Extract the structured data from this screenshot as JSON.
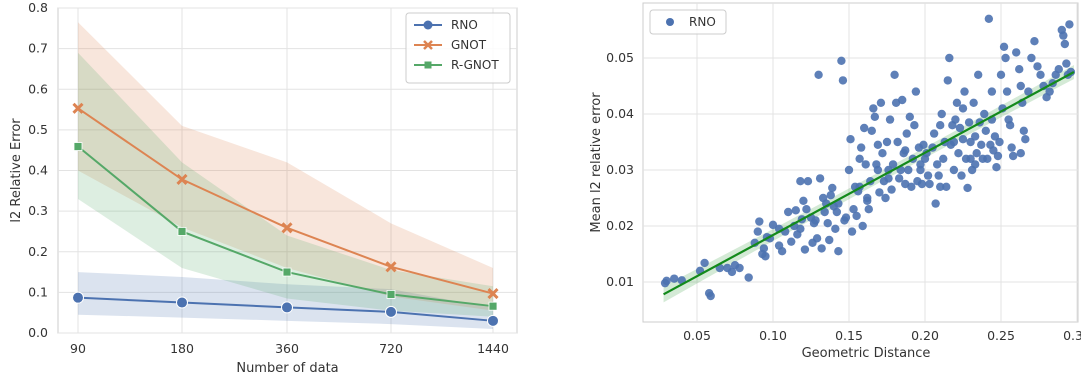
{
  "chart_data": [
    {
      "type": "line",
      "title": "",
      "xlabel": "Number of data",
      "ylabel": "l2 Relative Error",
      "categories": [
        "90",
        "180",
        "360",
        "720",
        "1440"
      ],
      "ylim": [
        0.0,
        0.8
      ],
      "yticks": [
        "0.0",
        "0.1",
        "0.2",
        "0.3",
        "0.4",
        "0.5",
        "0.6",
        "0.7",
        "0.8"
      ],
      "grid": true,
      "legend": "top-right",
      "series": [
        {
          "name": "RNO",
          "color": "#4c72b0",
          "marker": "circle",
          "values": [
            0.087,
            0.075,
            0.063,
            0.052,
            0.03
          ],
          "lower": [
            0.045,
            0.038,
            0.03,
            0.022,
            0.01
          ],
          "upper": [
            0.15,
            0.138,
            0.12,
            0.108,
            0.062
          ]
        },
        {
          "name": "GNOT",
          "color": "#dd8452",
          "marker": "x",
          "values": [
            0.553,
            0.378,
            0.259,
            0.163,
            0.097
          ],
          "lower": [
            0.4,
            0.26,
            0.16,
            0.09,
            0.055
          ],
          "upper": [
            0.765,
            0.51,
            0.42,
            0.27,
            0.16
          ]
        },
        {
          "name": "R-GNOT",
          "color": "#55a868",
          "marker": "square",
          "values": [
            0.459,
            0.25,
            0.15,
            0.095,
            0.066
          ],
          "lower": [
            0.33,
            0.16,
            0.085,
            0.055,
            0.04
          ],
          "upper": [
            0.69,
            0.42,
            0.24,
            0.155,
            0.115
          ]
        }
      ]
    },
    {
      "type": "scatter",
      "title": "",
      "xlabel": "Geometric Distance",
      "ylabel": "Mean l2 relative error",
      "xlim": [
        0.018,
        0.3
      ],
      "ylim": [
        0.0,
        0.058
      ],
      "xticks": [
        "0.05",
        "0.10",
        "0.15",
        "0.20",
        "0.25",
        "0.30"
      ],
      "yticks": [
        "0.01",
        "0.02",
        "0.03",
        "0.04",
        "0.05"
      ],
      "grid": true,
      "legend": "top-left",
      "series": [
        {
          "name": "RNO",
          "color": "#4c72b0"
        }
      ],
      "regression": {
        "color": "#138a1b",
        "x0": 0.028,
        "y0": 0.0078,
        "x1": 0.298,
        "y1": 0.0475
      },
      "points": [
        [
          0.029,
          0.0098
        ],
        [
          0.03,
          0.0102
        ],
        [
          0.035,
          0.0106
        ],
        [
          0.04,
          0.0103
        ],
        [
          0.052,
          0.012
        ],
        [
          0.055,
          0.0134
        ],
        [
          0.058,
          0.008
        ],
        [
          0.059,
          0.0075
        ],
        [
          0.065,
          0.0125
        ],
        [
          0.07,
          0.0125
        ],
        [
          0.073,
          0.0118
        ],
        [
          0.075,
          0.013
        ],
        [
          0.084,
          0.0108
        ],
        [
          0.088,
          0.017
        ],
        [
          0.09,
          0.019
        ],
        [
          0.091,
          0.0208
        ],
        [
          0.094,
          0.016
        ],
        [
          0.095,
          0.0146
        ],
        [
          0.096,
          0.018
        ],
        [
          0.098,
          0.0178
        ],
        [
          0.1,
          0.0202
        ],
        [
          0.104,
          0.0195
        ],
        [
          0.106,
          0.0155
        ],
        [
          0.108,
          0.019
        ],
        [
          0.11,
          0.0225
        ],
        [
          0.112,
          0.0172
        ],
        [
          0.114,
          0.02
        ],
        [
          0.115,
          0.0228
        ],
        [
          0.116,
          0.0185
        ],
        [
          0.118,
          0.028
        ],
        [
          0.119,
          0.0212
        ],
        [
          0.12,
          0.0245
        ],
        [
          0.121,
          0.0158
        ],
        [
          0.122,
          0.023
        ],
        [
          0.123,
          0.028
        ],
        [
          0.125,
          0.0215
        ],
        [
          0.126,
          0.017
        ],
        [
          0.127,
          0.0205
        ],
        [
          0.128,
          0.021
        ],
        [
          0.129,
          0.0178
        ],
        [
          0.13,
          0.047
        ],
        [
          0.131,
          0.0285
        ],
        [
          0.132,
          0.016
        ],
        [
          0.133,
          0.025
        ],
        [
          0.134,
          0.0225
        ],
        [
          0.135,
          0.024
        ],
        [
          0.136,
          0.0205
        ],
        [
          0.137,
          0.0175
        ],
        [
          0.138,
          0.0255
        ],
        [
          0.139,
          0.0268
        ],
        [
          0.14,
          0.0235
        ],
        [
          0.141,
          0.0195
        ],
        [
          0.142,
          0.0225
        ],
        [
          0.143,
          0.0155
        ],
        [
          0.145,
          0.0495
        ],
        [
          0.146,
          0.046
        ],
        [
          0.147,
          0.021
        ],
        [
          0.148,
          0.0215
        ],
        [
          0.15,
          0.03
        ],
        [
          0.151,
          0.0355
        ],
        [
          0.152,
          0.019
        ],
        [
          0.153,
          0.023
        ],
        [
          0.154,
          0.027
        ],
        [
          0.155,
          0.0218
        ],
        [
          0.156,
          0.0262
        ],
        [
          0.157,
          0.032
        ],
        [
          0.158,
          0.034
        ],
        [
          0.159,
          0.02
        ],
        [
          0.16,
          0.0375
        ],
        [
          0.161,
          0.031
        ],
        [
          0.162,
          0.025
        ],
        [
          0.163,
          0.023
        ],
        [
          0.164,
          0.028
        ],
        [
          0.165,
          0.037
        ],
        [
          0.166,
          0.041
        ],
        [
          0.167,
          0.0395
        ],
        [
          0.168,
          0.031
        ],
        [
          0.169,
          0.03
        ],
        [
          0.17,
          0.026
        ],
        [
          0.171,
          0.042
        ],
        [
          0.172,
          0.033
        ],
        [
          0.173,
          0.028
        ],
        [
          0.174,
          0.025
        ],
        [
          0.175,
          0.035
        ],
        [
          0.176,
          0.03
        ],
        [
          0.177,
          0.039
        ],
        [
          0.178,
          0.0265
        ],
        [
          0.179,
          0.031
        ],
        [
          0.18,
          0.047
        ],
        [
          0.181,
          0.042
        ],
        [
          0.182,
          0.035
        ],
        [
          0.183,
          0.0285
        ],
        [
          0.184,
          0.03
        ],
        [
          0.185,
          0.0425
        ],
        [
          0.186,
          0.033
        ],
        [
          0.187,
          0.0275
        ],
        [
          0.188,
          0.0365
        ],
        [
          0.189,
          0.03
        ],
        [
          0.19,
          0.0395
        ],
        [
          0.191,
          0.027
        ],
        [
          0.192,
          0.032
        ],
        [
          0.193,
          0.038
        ],
        [
          0.194,
          0.044
        ],
        [
          0.195,
          0.028
        ],
        [
          0.196,
          0.034
        ],
        [
          0.197,
          0.03
        ],
        [
          0.198,
          0.0275
        ],
        [
          0.199,
          0.0345
        ],
        [
          0.2,
          0.032
        ],
        [
          0.201,
          0.033
        ],
        [
          0.202,
          0.029
        ],
        [
          0.203,
          0.0275
        ],
        [
          0.205,
          0.034
        ],
        [
          0.206,
          0.0365
        ],
        [
          0.207,
          0.024
        ],
        [
          0.208,
          0.031
        ],
        [
          0.209,
          0.029
        ],
        [
          0.21,
          0.038
        ],
        [
          0.211,
          0.04
        ],
        [
          0.212,
          0.032
        ],
        [
          0.213,
          0.035
        ],
        [
          0.214,
          0.027
        ],
        [
          0.215,
          0.046
        ],
        [
          0.216,
          0.05
        ],
        [
          0.217,
          0.0345
        ],
        [
          0.218,
          0.038
        ],
        [
          0.219,
          0.03
        ],
        [
          0.22,
          0.039
        ],
        [
          0.221,
          0.042
        ],
        [
          0.222,
          0.033
        ],
        [
          0.223,
          0.0375
        ],
        [
          0.224,
          0.029
        ],
        [
          0.225,
          0.0355
        ],
        [
          0.226,
          0.044
        ],
        [
          0.227,
          0.032
        ],
        [
          0.228,
          0.0268
        ],
        [
          0.229,
          0.0385
        ],
        [
          0.23,
          0.035
        ],
        [
          0.231,
          0.03
        ],
        [
          0.232,
          0.042
        ],
        [
          0.233,
          0.036
        ],
        [
          0.234,
          0.033
        ],
        [
          0.235,
          0.047
        ],
        [
          0.236,
          0.0385
        ],
        [
          0.237,
          0.0345
        ],
        [
          0.238,
          0.032
        ],
        [
          0.239,
          0.04
        ],
        [
          0.24,
          0.037
        ],
        [
          0.241,
          0.032
        ],
        [
          0.242,
          0.057
        ],
        [
          0.243,
          0.0345
        ],
        [
          0.244,
          0.039
        ],
        [
          0.245,
          0.0335
        ],
        [
          0.246,
          0.036
        ],
        [
          0.247,
          0.0305
        ],
        [
          0.248,
          0.0325
        ],
        [
          0.249,
          0.035
        ],
        [
          0.25,
          0.047
        ],
        [
          0.251,
          0.041
        ],
        [
          0.252,
          0.052
        ],
        [
          0.253,
          0.05
        ],
        [
          0.254,
          0.044
        ],
        [
          0.255,
          0.039
        ],
        [
          0.256,
          0.038
        ],
        [
          0.257,
          0.034
        ],
        [
          0.258,
          0.0325
        ],
        [
          0.26,
          0.051
        ],
        [
          0.262,
          0.048
        ],
        [
          0.263,
          0.045
        ],
        [
          0.264,
          0.042
        ],
        [
          0.265,
          0.037
        ],
        [
          0.266,
          0.0355
        ],
        [
          0.268,
          0.044
        ],
        [
          0.27,
          0.05
        ],
        [
          0.272,
          0.053
        ],
        [
          0.274,
          0.0485
        ],
        [
          0.276,
          0.047
        ],
        [
          0.278,
          0.045
        ],
        [
          0.28,
          0.043
        ],
        [
          0.282,
          0.044
        ],
        [
          0.284,
          0.0455
        ],
        [
          0.286,
          0.047
        ],
        [
          0.288,
          0.048
        ],
        [
          0.29,
          0.055
        ],
        [
          0.291,
          0.054
        ],
        [
          0.292,
          0.0525
        ],
        [
          0.293,
          0.049
        ],
        [
          0.294,
          0.047
        ],
        [
          0.295,
          0.056
        ],
        [
          0.296,
          0.0475
        ],
        [
          0.263,
          0.033
        ],
        [
          0.233,
          0.031
        ],
        [
          0.157,
          0.027
        ],
        [
          0.143,
          0.024
        ],
        [
          0.118,
          0.0195
        ],
        [
          0.104,
          0.0165
        ],
        [
          0.093,
          0.015
        ],
        [
          0.078,
          0.0125
        ],
        [
          0.21,
          0.027
        ],
        [
          0.197,
          0.031
        ],
        [
          0.187,
          0.0335
        ],
        [
          0.176,
          0.0285
        ],
        [
          0.169,
          0.0345
        ],
        [
          0.162,
          0.0245
        ],
        [
          0.225,
          0.041
        ],
        [
          0.244,
          0.044
        ],
        [
          0.23,
          0.032
        ],
        [
          0.219,
          0.035
        ]
      ]
    }
  ]
}
